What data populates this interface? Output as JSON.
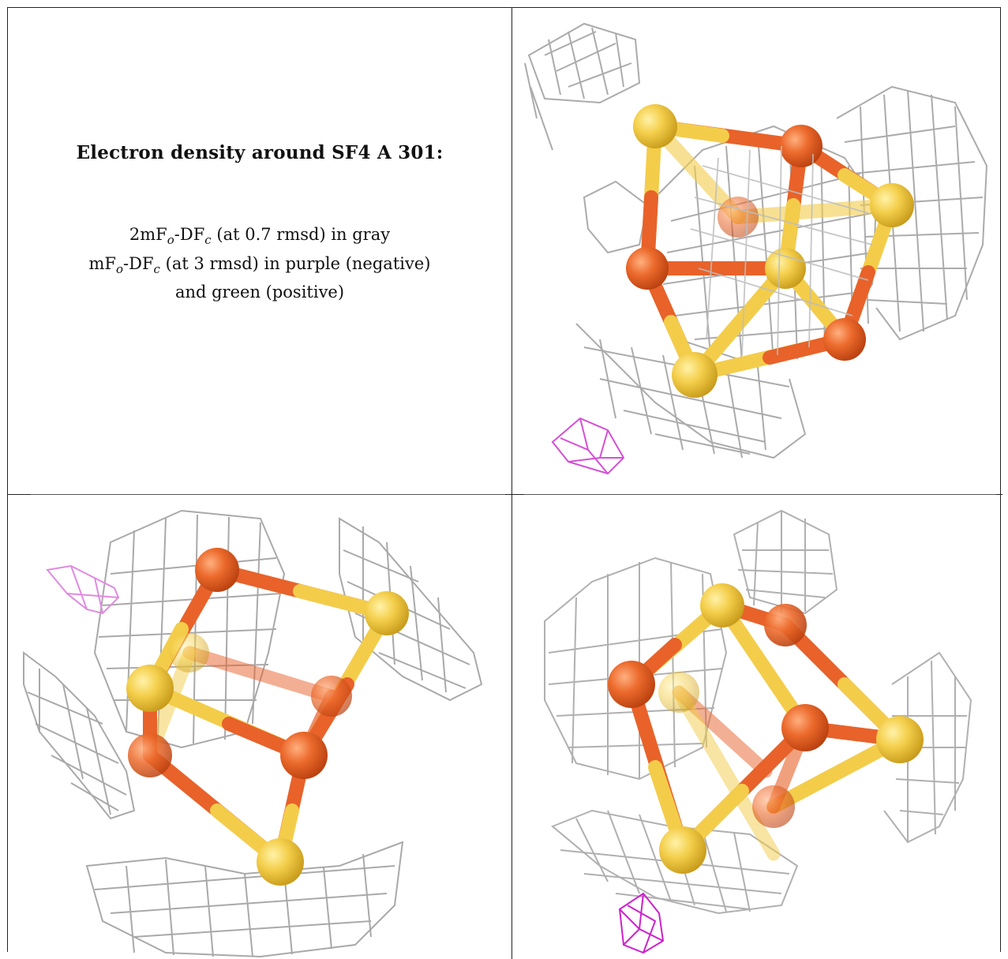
{
  "caption": {
    "title": "Electron density around SF4 A 301:",
    "line1": {
      "pre": "2mF",
      "sub1": "o",
      "mid": "-DF",
      "sub2": "c",
      "post": " (at 0.7 rmsd) in gray"
    },
    "line2": {
      "pre": "mF",
      "sub1": "o",
      "mid": "-DF",
      "sub2": "c",
      "post": " (at 3 rmsd) in purple (negative)"
    },
    "line3": "and green (positive)"
  },
  "colors": {
    "iron": "#e8622a",
    "sulfur": "#f3cd4a",
    "mesh_2fofc": "#a8a8a8",
    "mesh_negative": "#d64fd6"
  },
  "views": [
    {
      "name": "view-top-right"
    },
    {
      "name": "view-bottom-left"
    },
    {
      "name": "view-bottom-right"
    }
  ]
}
